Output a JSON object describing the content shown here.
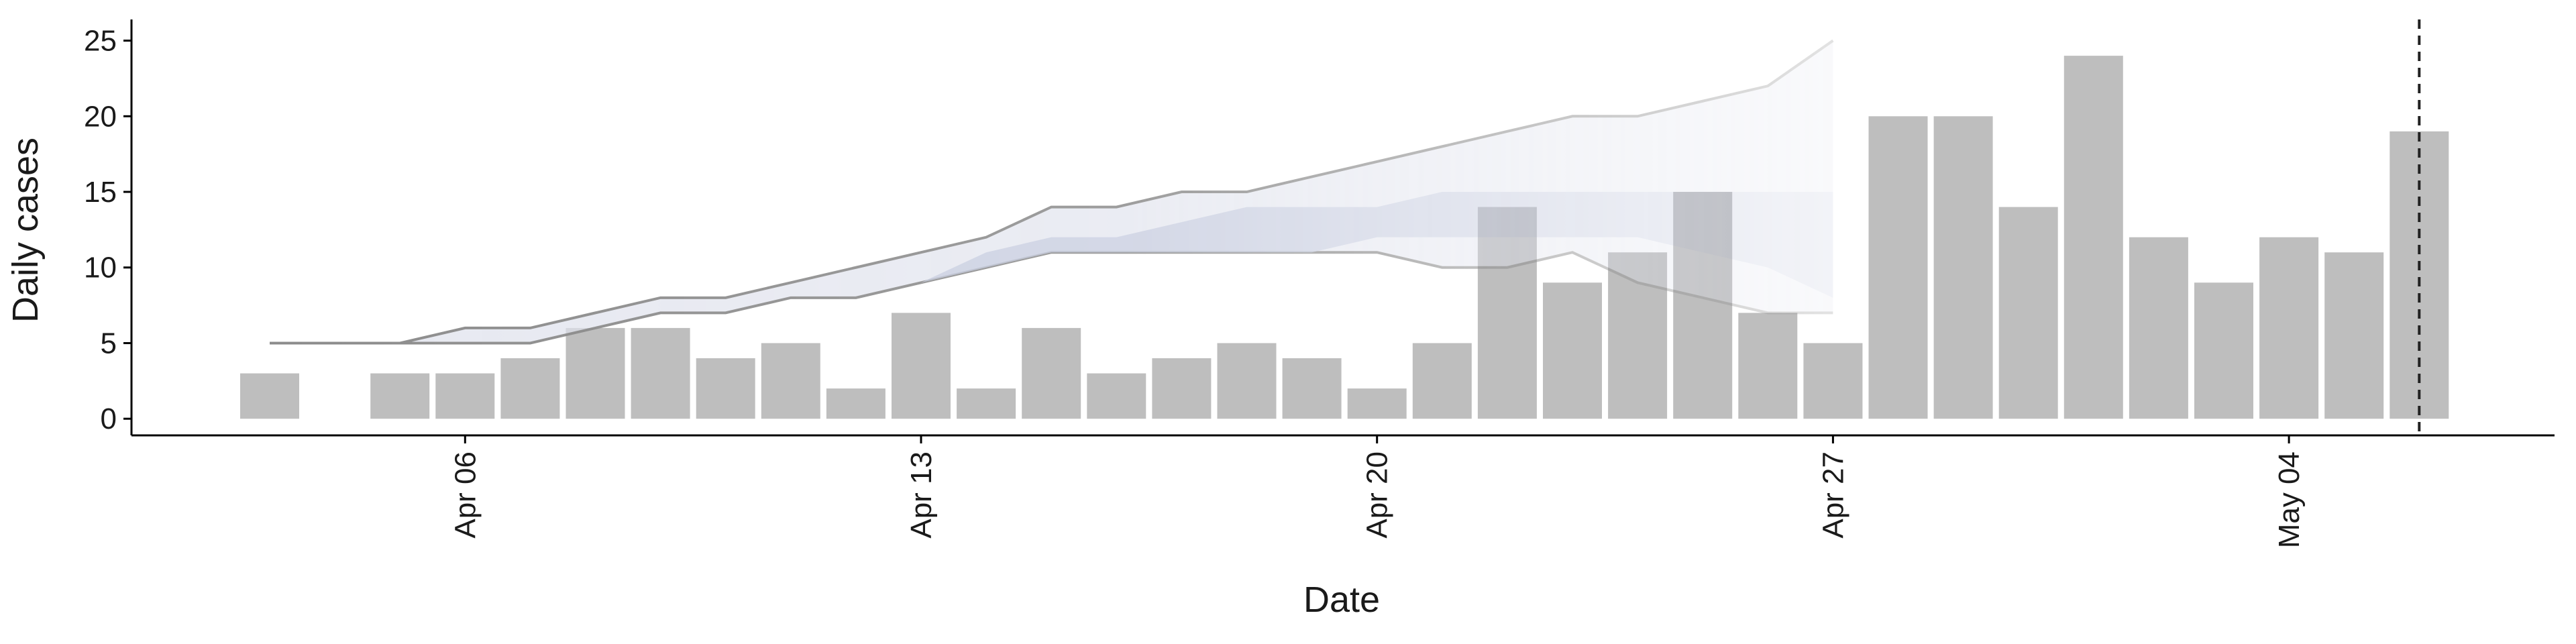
{
  "chart_data": {
    "type": "bar",
    "x_label": "Date",
    "y_label": "Daily cases",
    "x": [
      "Apr 03",
      "Apr 04",
      "Apr 05",
      "Apr 06",
      "Apr 07",
      "Apr 08",
      "Apr 09",
      "Apr 10",
      "Apr 11",
      "Apr 12",
      "Apr 13",
      "Apr 14",
      "Apr 15",
      "Apr 16",
      "Apr 17",
      "Apr 18",
      "Apr 19",
      "Apr 20",
      "Apr 21",
      "Apr 22",
      "Apr 23",
      "Apr 24",
      "Apr 25",
      "Apr 26",
      "Apr 27",
      "Apr 28",
      "Apr 29",
      "Apr 30",
      "May 01",
      "May 02",
      "May 03",
      "May 04",
      "May 05",
      "May 06"
    ],
    "values": [
      3,
      0,
      3,
      3,
      4,
      6,
      6,
      4,
      5,
      2,
      7,
      2,
      6,
      3,
      4,
      5,
      4,
      2,
      5,
      14,
      9,
      11,
      15,
      7,
      5,
      20,
      20,
      14,
      24,
      12,
      9,
      12,
      11,
      19
    ],
    "color": "#bebebe",
    "xticks": [
      "Apr 06",
      "Apr 13",
      "Apr 20",
      "Apr 27",
      "May 04"
    ],
    "ylim": [
      -1.1,
      26.4
    ],
    "yticks": [
      0,
      5,
      10,
      15,
      20,
      25
    ],
    "vline": "May 06",
    "bands": [
      {
        "x": [
          "Apr 03",
          "Apr 04",
          "Apr 05",
          "Apr 06",
          "Apr 07",
          "Apr 08",
          "Apr 09",
          "Apr 10",
          "Apr 11",
          "Apr 12",
          "Apr 13",
          "Apr 14",
          "Apr 15",
          "Apr 16",
          "Apr 17",
          "Apr 18",
          "Apr 19",
          "Apr 20",
          "Apr 21",
          "Apr 22",
          "Apr 23",
          "Apr 24",
          "Apr 25",
          "Apr 26",
          "Apr 27"
        ],
        "lower": [
          5,
          5,
          5,
          5,
          5,
          6,
          7,
          7,
          8,
          8,
          9,
          10,
          11,
          11,
          11,
          11,
          11,
          11,
          10,
          10,
          11,
          9,
          8,
          7,
          7
        ],
        "upper": [
          5,
          5,
          5,
          6,
          6,
          7,
          8,
          8,
          9,
          10,
          11,
          12,
          14,
          14,
          15,
          15,
          16,
          17,
          18,
          19,
          20,
          20,
          21,
          22,
          25
        ],
        "color": "#dfe2ec",
        "line_color": "#8c8c8c"
      },
      {
        "x": [
          "Apr 13",
          "Apr 14",
          "Apr 15",
          "Apr 16",
          "Apr 17",
          "Apr 18",
          "Apr 19",
          "Apr 20",
          "Apr 21",
          "Apr 22",
          "Apr 23",
          "Apr 24",
          "Apr 25",
          "Apr 26",
          "Apr 27"
        ],
        "lower": [
          9,
          10,
          11,
          11,
          11,
          11,
          11,
          12,
          12,
          12,
          12,
          12,
          11,
          10,
          8
        ],
        "upper": [
          9,
          11,
          12,
          12,
          13,
          14,
          14,
          14,
          15,
          15,
          15,
          15,
          15,
          15,
          15
        ],
        "color": "#c3c9dd"
      }
    ]
  }
}
